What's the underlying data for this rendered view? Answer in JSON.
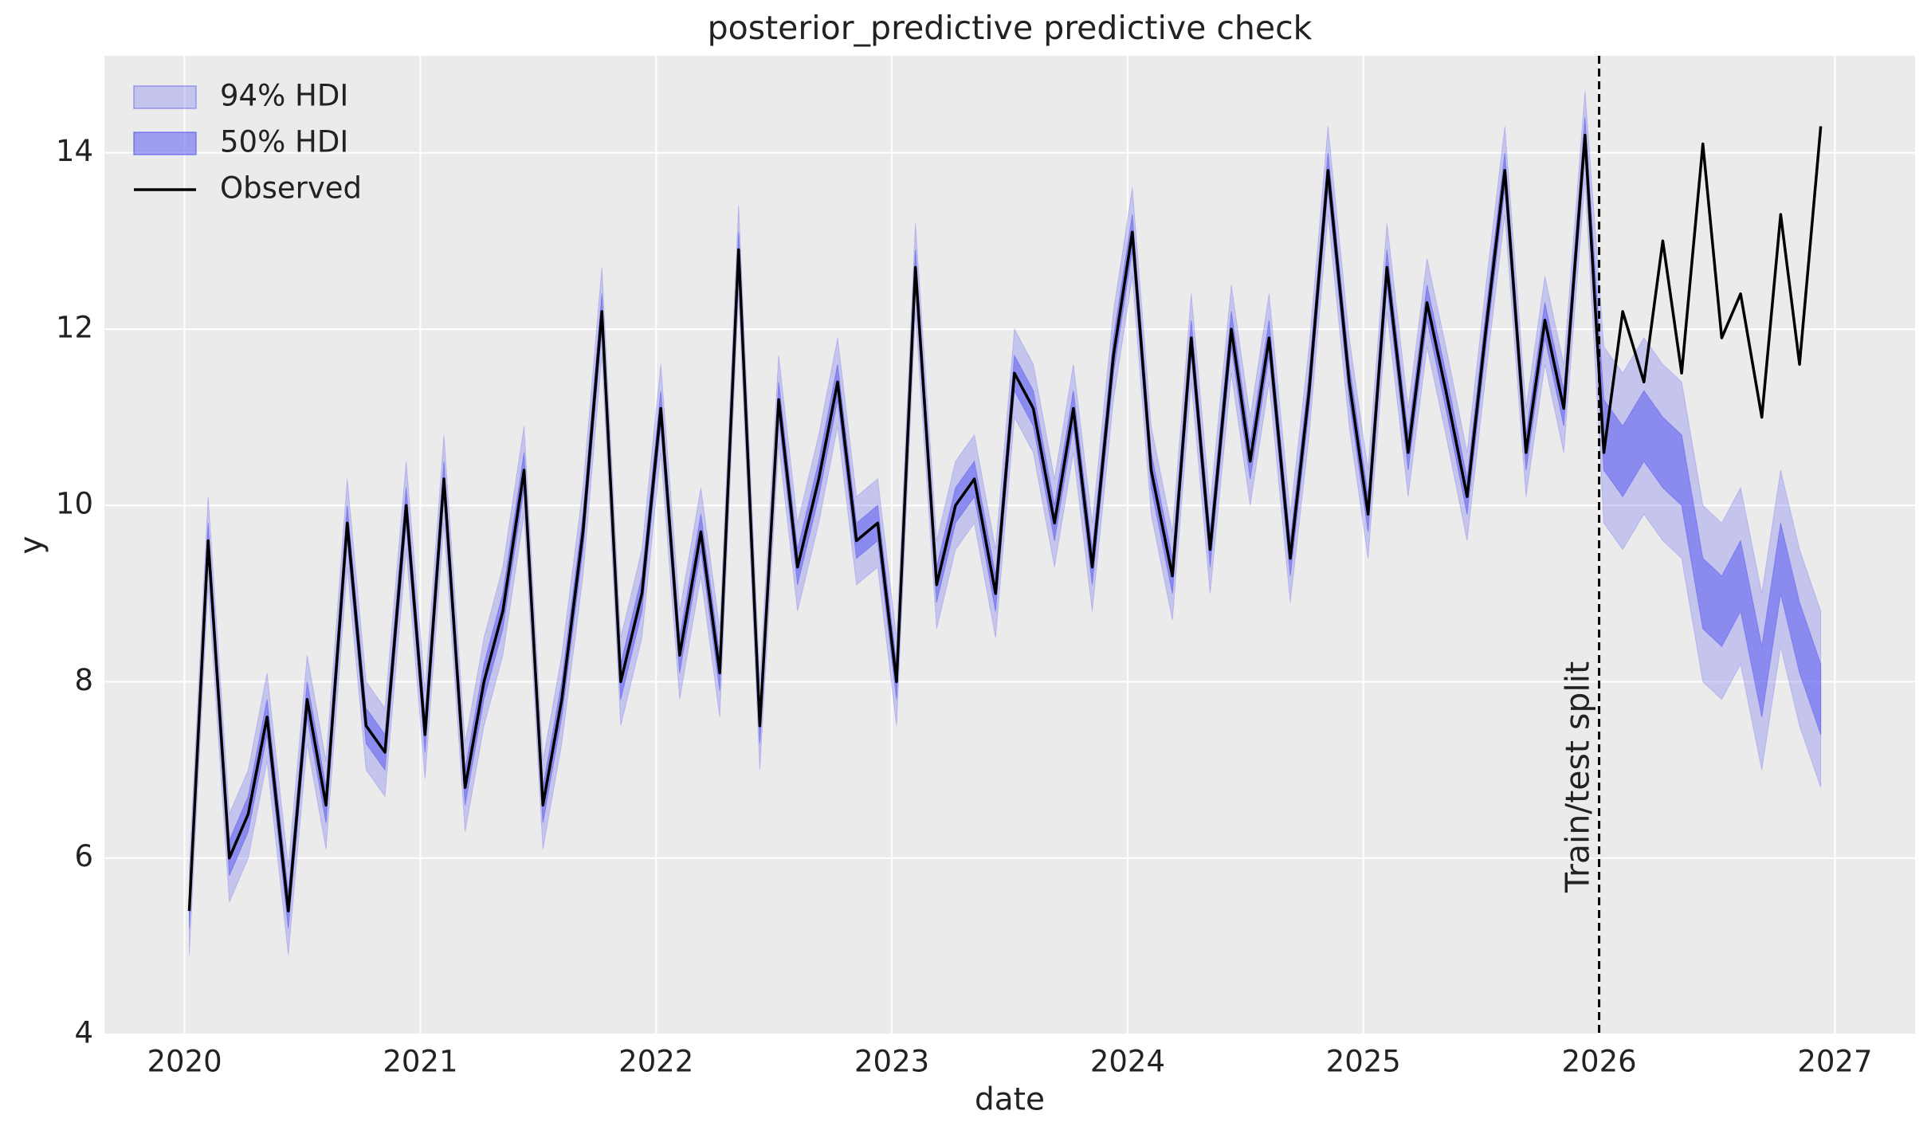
{
  "chart_data": {
    "type": "line",
    "title": "posterior_predictive predictive check",
    "x_label": "date",
    "y_label": "y",
    "x": [
      2020.02,
      2020.1,
      2020.19,
      2020.27,
      2020.35,
      2020.44,
      2020.52,
      2020.6,
      2020.69,
      2020.77,
      2020.85,
      2020.94,
      2021.02,
      2021.1,
      2021.19,
      2021.27,
      2021.35,
      2021.44,
      2021.52,
      2021.6,
      2021.69,
      2021.77,
      2021.85,
      2021.94,
      2022.02,
      2022.1,
      2022.19,
      2022.27,
      2022.35,
      2022.44,
      2022.52,
      2022.6,
      2022.69,
      2022.77,
      2022.85,
      2022.94,
      2023.02,
      2023.1,
      2023.19,
      2023.27,
      2023.35,
      2023.44,
      2023.52,
      2023.6,
      2023.69,
      2023.77,
      2023.85,
      2023.94,
      2024.02,
      2024.1,
      2024.19,
      2024.27,
      2024.35,
      2024.44,
      2024.52,
      2024.6,
      2024.69,
      2024.77,
      2024.85,
      2024.94,
      2025.02,
      2025.1,
      2025.19,
      2025.27,
      2025.35,
      2025.44,
      2025.52,
      2025.6,
      2025.69,
      2025.77,
      2025.85,
      2025.94,
      2026.02,
      2026.1,
      2026.19,
      2026.27,
      2026.35,
      2026.44,
      2026.52,
      2026.6,
      2026.69,
      2026.77,
      2026.85,
      2026.94
    ],
    "xlim": [
      2019.66,
      2027.34
    ],
    "xticks": [
      2020,
      2021,
      2022,
      2023,
      2024,
      2025,
      2026,
      2027
    ],
    "ylim": [
      4,
      15.1
    ],
    "yticks": [
      4,
      6,
      8,
      10,
      12,
      14
    ],
    "grid": true,
    "legend": "upper left",
    "series": [
      {
        "name": "94% HDI",
        "color": "#7b7bf0",
        "opacity": 0.35,
        "lower": [
          4.9,
          9.1,
          5.5,
          6.0,
          7.1,
          4.9,
          7.3,
          6.1,
          9.3,
          7.0,
          6.7,
          9.5,
          6.9,
          9.8,
          6.3,
          7.5,
          8.3,
          9.9,
          6.1,
          7.3,
          9.2,
          11.7,
          7.5,
          8.5,
          10.6,
          7.8,
          9.2,
          7.6,
          12.4,
          7.0,
          10.7,
          8.8,
          9.8,
          10.9,
          9.1,
          9.3,
          7.5,
          12.2,
          8.6,
          9.5,
          9.8,
          8.5,
          11.0,
          10.6,
          9.3,
          10.6,
          8.8,
          11.2,
          12.6,
          9.9,
          8.7,
          11.4,
          9.0,
          11.5,
          10.0,
          11.4,
          8.9,
          10.8,
          13.3,
          10.9,
          9.4,
          12.2,
          10.1,
          11.8,
          10.8,
          9.6,
          11.5,
          13.3,
          10.1,
          11.6,
          10.6,
          13.7,
          9.8,
          9.5,
          9.9,
          9.6,
          9.4,
          8.0,
          7.8,
          8.2,
          7.0,
          8.4,
          7.5,
          6.8
        ],
        "upper": [
          5.9,
          10.1,
          6.5,
          7.0,
          8.1,
          5.9,
          8.3,
          7.1,
          10.3,
          8.0,
          7.7,
          10.5,
          7.9,
          10.8,
          7.3,
          8.5,
          9.3,
          10.9,
          7.1,
          8.3,
          10.2,
          12.7,
          8.5,
          9.5,
          11.6,
          8.8,
          10.2,
          8.6,
          13.4,
          8.0,
          11.7,
          9.8,
          10.8,
          11.9,
          10.1,
          10.3,
          8.5,
          13.2,
          9.6,
          10.5,
          10.8,
          9.5,
          12.0,
          11.6,
          10.3,
          11.6,
          9.8,
          12.2,
          13.6,
          10.9,
          9.7,
          12.4,
          10.0,
          12.5,
          11.0,
          12.4,
          9.9,
          11.8,
          14.3,
          11.9,
          10.4,
          13.2,
          11.1,
          12.8,
          11.8,
          10.6,
          12.5,
          14.3,
          11.1,
          12.6,
          11.6,
          14.7,
          11.8,
          11.5,
          11.9,
          11.6,
          11.4,
          10.0,
          9.8,
          10.2,
          9.0,
          10.4,
          9.5,
          8.8
        ]
      },
      {
        "name": "50% HDI",
        "color": "#5c5cf0",
        "opacity": 0.55,
        "lower": [
          5.2,
          9.4,
          5.8,
          6.3,
          7.4,
          5.2,
          7.6,
          6.4,
          9.6,
          7.3,
          7.0,
          9.8,
          7.2,
          10.1,
          6.6,
          7.8,
          8.6,
          10.2,
          6.4,
          7.6,
          9.5,
          12.0,
          7.8,
          8.8,
          10.9,
          8.1,
          9.5,
          7.9,
          12.7,
          7.3,
          11.0,
          9.1,
          10.1,
          11.2,
          9.4,
          9.6,
          7.8,
          12.5,
          8.9,
          9.8,
          10.1,
          8.8,
          11.3,
          10.9,
          9.6,
          10.9,
          9.1,
          11.5,
          12.9,
          10.2,
          9.0,
          11.7,
          9.3,
          11.8,
          10.3,
          11.7,
          9.2,
          11.1,
          13.6,
          11.2,
          9.7,
          12.5,
          10.4,
          12.1,
          11.1,
          9.9,
          11.8,
          13.6,
          10.4,
          11.9,
          10.9,
          14.0,
          10.4,
          10.1,
          10.5,
          10.2,
          10.0,
          8.6,
          8.4,
          8.8,
          7.6,
          9.0,
          8.1,
          7.4
        ],
        "upper": [
          5.6,
          9.8,
          6.2,
          6.7,
          7.8,
          5.6,
          8.0,
          6.8,
          10.0,
          7.7,
          7.4,
          10.2,
          7.6,
          10.5,
          7.0,
          8.2,
          9.0,
          10.6,
          6.8,
          8.0,
          9.9,
          12.4,
          8.2,
          9.2,
          11.3,
          8.5,
          9.9,
          8.3,
          13.1,
          7.7,
          11.4,
          9.5,
          10.5,
          11.6,
          9.8,
          10.0,
          8.2,
          12.9,
          9.3,
          10.2,
          10.5,
          9.2,
          11.7,
          11.3,
          10.0,
          11.3,
          9.5,
          11.9,
          13.3,
          10.6,
          9.4,
          12.1,
          9.7,
          12.2,
          10.7,
          12.1,
          9.6,
          11.5,
          14.0,
          11.6,
          10.1,
          12.9,
          10.8,
          12.5,
          11.5,
          10.3,
          12.2,
          14.0,
          10.8,
          12.3,
          11.3,
          14.4,
          11.2,
          10.9,
          11.3,
          11.0,
          10.8,
          9.4,
          9.2,
          9.6,
          8.4,
          9.8,
          8.9,
          8.2
        ]
      },
      {
        "name": "Observed",
        "color": "#000000",
        "values": [
          5.4,
          9.6,
          6.0,
          6.5,
          7.6,
          5.4,
          7.8,
          6.6,
          9.8,
          7.5,
          7.2,
          10.0,
          7.4,
          10.3,
          6.8,
          8.0,
          8.8,
          10.4,
          6.6,
          7.8,
          9.7,
          12.2,
          8.0,
          9.0,
          11.1,
          8.3,
          9.7,
          8.1,
          12.9,
          7.5,
          11.2,
          9.3,
          10.3,
          11.4,
          9.6,
          9.8,
          8.0,
          12.7,
          9.1,
          10.0,
          10.3,
          9.0,
          11.5,
          11.1,
          9.8,
          11.1,
          9.3,
          11.7,
          13.1,
          10.4,
          9.2,
          11.9,
          9.5,
          12.0,
          10.5,
          11.9,
          9.4,
          11.3,
          13.8,
          11.4,
          9.9,
          12.7,
          10.6,
          12.3,
          11.3,
          10.1,
          12.0,
          13.8,
          10.6,
          12.1,
          11.1,
          14.2,
          10.6,
          12.2,
          11.4,
          13.0,
          11.5,
          14.1,
          11.9,
          12.4,
          11.0,
          13.3,
          11.6,
          14.3
        ]
      }
    ],
    "annotations": [
      {
        "text": "Train/test split",
        "x": 2026.0
      }
    ]
  }
}
